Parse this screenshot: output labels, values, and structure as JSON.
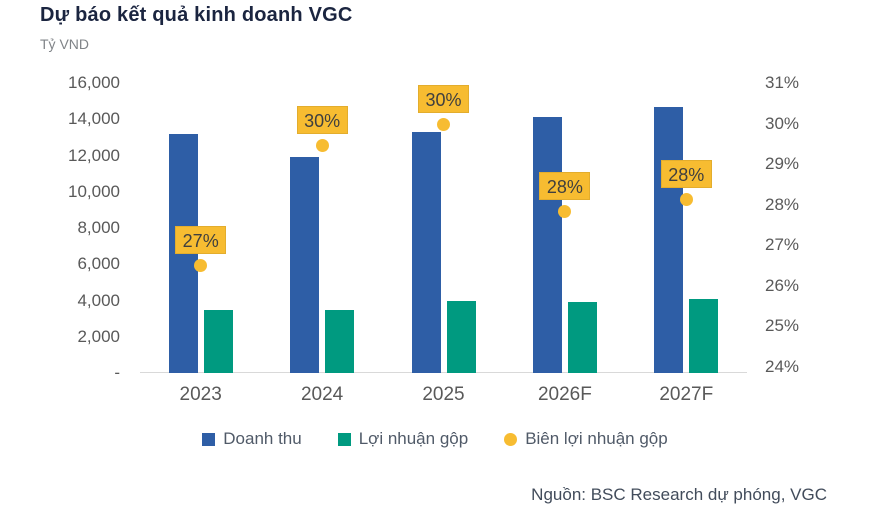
{
  "header": {
    "title": "Dự báo kết quả kinh doanh VGC",
    "unit_label": "Tỷ VND"
  },
  "source_note": "Nguồn: BSC Research dự phóng, VGC",
  "legend": [
    {
      "label": "Doanh thu",
      "swatch": "square",
      "color": "#2E5EA6"
    },
    {
      "label": "Lợi nhuận gộp",
      "swatch": "square",
      "color": "#009A80"
    },
    {
      "label": "Biên lợi nhuận gộp",
      "swatch": "circle",
      "color": "#F7BC31"
    }
  ],
  "colors": {
    "revenue_bar": "#2E5EA6",
    "gross_profit_bar": "#009A80",
    "margin_point": "#F7BC31",
    "data_label_bg": "#F7BC31",
    "data_label_text": "#3F3F3F",
    "axis_text": "#595959",
    "axis_line": "#D9D9D9",
    "title_text": "#1B2540"
  },
  "chart_data": {
    "type": "bar",
    "subtype": "grouped-bars-with-point-series",
    "title": "Dự báo kết quả kinh doanh VGC",
    "categories": [
      "2023",
      "2024",
      "2025",
      "2026F",
      "2027F"
    ],
    "series": [
      {
        "name": "Doanh thu",
        "render": "bar",
        "axis": "left",
        "color": "#2E5EA6",
        "values": [
          13200,
          11900,
          13300,
          14100,
          14700
        ]
      },
      {
        "name": "Lợi nhuận gộp",
        "render": "bar",
        "axis": "left",
        "color": "#009A80",
        "values": [
          3450,
          3450,
          3950,
          3900,
          4100
        ]
      },
      {
        "name": "Biên lợi nhuận gộp",
        "render": "point",
        "axis": "right",
        "color": "#F7BC31",
        "values": [
          26.6,
          29.5,
          30.0,
          27.9,
          28.2
        ],
        "data_labels": [
          "27%",
          "30%",
          "30%",
          "28%",
          "28%"
        ]
      }
    ],
    "left_axis": {
      "label": "Tỷ VND",
      "min": 0,
      "max": 16000,
      "step": 2000,
      "tick_labels": [
        "16,000",
        "14,000",
        "12,000",
        "10,000",
        "8,000",
        "6,000",
        "4,000",
        "2,000",
        "-"
      ]
    },
    "right_axis": {
      "min": 24,
      "max": 31,
      "step": 1,
      "unit": "%",
      "tick_labels": [
        "31%",
        "30%",
        "29%",
        "28%",
        "27%",
        "26%",
        "25%",
        "24%"
      ]
    },
    "grid": false,
    "legend_position": "bottom"
  }
}
